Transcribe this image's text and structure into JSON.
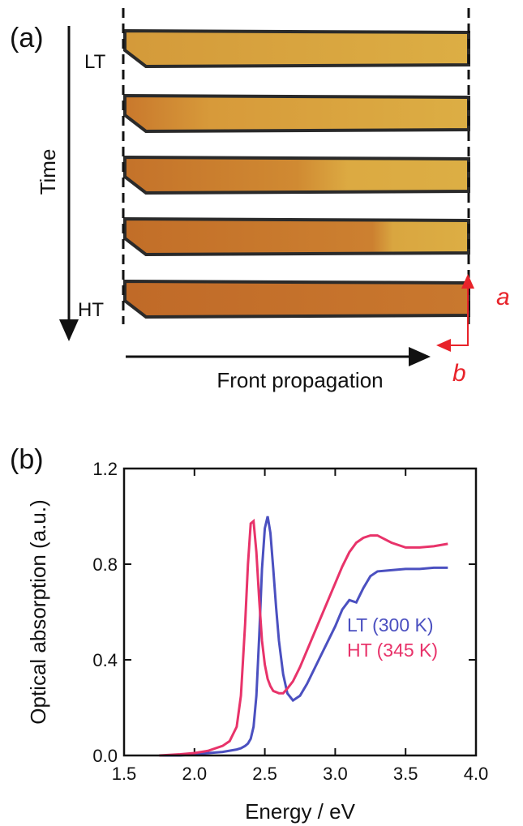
{
  "panel_a": {
    "label": "(a)",
    "lt": "LT",
    "ht": "HT",
    "time": "Time",
    "front": "Front propagation",
    "axis_a": "a",
    "axis_b": "b"
  },
  "chart_data": {
    "type": "line",
    "panel_label": "(b)",
    "x_label": "Energy / eV",
    "y_label": "Optical absorption (a.u.)",
    "x": [
      1.75,
      1.9,
      2.0,
      2.1,
      2.2,
      2.25,
      2.3,
      2.33,
      2.36,
      2.38,
      2.4,
      2.42,
      2.44,
      2.46,
      2.48,
      2.5,
      2.52,
      2.54,
      2.56,
      2.58,
      2.6,
      2.63,
      2.66,
      2.7,
      2.75,
      2.8,
      2.9,
      3.0,
      3.05,
      3.1,
      3.15,
      3.2,
      3.25,
      3.3,
      3.4,
      3.5,
      3.6,
      3.7,
      3.8
    ],
    "series": [
      {
        "name": "LT (300 K)",
        "color": "#4b50c0",
        "values": [
          0,
          0,
          0.005,
          0.01,
          0.015,
          0.02,
          0.025,
          0.03,
          0.04,
          0.05,
          0.07,
          0.12,
          0.25,
          0.5,
          0.78,
          0.95,
          1.0,
          0.93,
          0.78,
          0.62,
          0.48,
          0.34,
          0.26,
          0.23,
          0.25,
          0.3,
          0.42,
          0.54,
          0.61,
          0.65,
          0.64,
          0.7,
          0.75,
          0.77,
          0.775,
          0.78,
          0.78,
          0.785,
          0.785
        ]
      },
      {
        "name": "HT (345 K)",
        "color": "#e8336a",
        "values": [
          0,
          0.005,
          0.01,
          0.02,
          0.04,
          0.06,
          0.12,
          0.25,
          0.55,
          0.8,
          0.97,
          0.98,
          0.85,
          0.65,
          0.48,
          0.38,
          0.32,
          0.29,
          0.27,
          0.265,
          0.26,
          0.26,
          0.28,
          0.31,
          0.37,
          0.44,
          0.58,
          0.72,
          0.79,
          0.85,
          0.89,
          0.91,
          0.92,
          0.92,
          0.89,
          0.87,
          0.87,
          0.875,
          0.885
        ]
      }
    ],
    "xlim": [
      1.5,
      4.0
    ],
    "xticks": [
      1.5,
      {
        "value": 2.0,
        "label": "2.0"
      },
      2.5,
      {
        "value": 3.0,
        "label": "3.0"
      },
      3.5,
      {
        "value": 4.0,
        "label": "4.0"
      }
    ],
    "ylim": [
      0,
      1.2
    ],
    "yticks": [
      {
        "value": 0,
        "label": "0.0"
      },
      0.4,
      0.8,
      1.2
    ]
  }
}
